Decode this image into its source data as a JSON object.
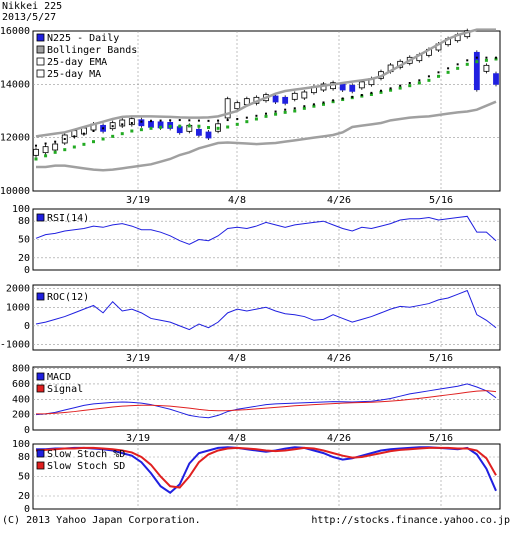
{
  "header": {
    "title": "Nikkei 225",
    "date": "2013/5/27"
  },
  "footer": {
    "copyright": "(C) 2013 Yahoo Japan Corporation.",
    "url": "http://stocks.finance.yahoo.co.jp"
  },
  "x_ticks": [
    "3/19",
    "4/8",
    "4/26",
    "5/16"
  ],
  "colors": {
    "price": "#2020e0",
    "bollinger": "#a0a0a0",
    "ema": "#22aa22",
    "ma": "#000000",
    "signal": "#e02020",
    "grid": "#999999"
  },
  "chart_data": [
    {
      "type": "line",
      "title": "N225 - Daily",
      "legend": [
        "N225 - Daily",
        "Bollinger Bands",
        "25-day EMA",
        "25-day MA"
      ],
      "y_ticks": [
        10000,
        12000,
        14000,
        16000
      ],
      "ylim": [
        10000,
        16000
      ],
      "series": [
        {
          "name": "N225 - Daily",
          "values": [
            11450,
            11550,
            11650,
            11950,
            12150,
            12250,
            12400,
            12350,
            12450,
            12550,
            12600,
            12560,
            12500,
            12480,
            12460,
            12300,
            12350,
            12200,
            12100,
            12380,
            13100,
            13200,
            13350,
            13400,
            13500,
            13450,
            13400,
            13550,
            13600,
            13800,
            13900,
            13950,
            13900,
            13850,
            13980,
            14100,
            14350,
            14600,
            14750,
            14900,
            15000,
            15200,
            15400,
            15600,
            15750,
            15900,
            14500,
            14600,
            14200
          ]
        },
        {
          "name": "Bollinger Upper",
          "values": [
            12050,
            12100,
            12150,
            12200,
            12300,
            12400,
            12500,
            12600,
            12700,
            12780,
            12800,
            12800,
            12800,
            12790,
            12780,
            12760,
            12750,
            12750,
            12760,
            12800,
            12900,
            13000,
            13200,
            13350,
            13500,
            13650,
            13750,
            13800,
            13850,
            13900,
            13950,
            14000,
            14050,
            14100,
            14150,
            14200,
            14300,
            14500,
            14700,
            14900,
            15100,
            15300,
            15500,
            15700,
            15850,
            15950,
            16050,
            16050,
            16050
          ]
        },
        {
          "name": "Bollinger Lower",
          "values": [
            10900,
            10900,
            10950,
            10950,
            10900,
            10850,
            10800,
            10780,
            10800,
            10850,
            10900,
            10950,
            11000,
            11100,
            11200,
            11350,
            11450,
            11600,
            11700,
            11800,
            11820,
            11800,
            11780,
            11760,
            11780,
            11800,
            11850,
            11900,
            11950,
            12000,
            12050,
            12100,
            12200,
            12400,
            12450,
            12500,
            12550,
            12650,
            12700,
            12750,
            12780,
            12800,
            12850,
            12900,
            12950,
            12980,
            13050,
            13200,
            13350
          ]
        },
        {
          "name": "25-day EMA",
          "values": [
            11200,
            11320,
            11450,
            11550,
            11650,
            11750,
            11850,
            11950,
            12050,
            12150,
            12250,
            12300,
            12350,
            12390,
            12420,
            12430,
            12440,
            12430,
            12380,
            12350,
            12400,
            12500,
            12600,
            12700,
            12800,
            12880,
            12950,
            13000,
            13100,
            13180,
            13250,
            13350,
            13430,
            13500,
            13560,
            13620,
            13700,
            13780,
            13860,
            13950,
            14050,
            14150,
            14300,
            14450,
            14600,
            14750,
            14850,
            14900,
            14950
          ]
        },
        {
          "name": "25-day MA",
          "values": [
            11700,
            11780,
            11850,
            11950,
            12050,
            12150,
            12250,
            12350,
            12430,
            12500,
            12550,
            12600,
            12620,
            12640,
            12650,
            12660,
            12650,
            12640,
            12630,
            12640,
            12660,
            12700,
            12750,
            12820,
            12900,
            12980,
            13050,
            13100,
            13180,
            13250,
            13320,
            13400,
            13470,
            13530,
            13600,
            13680,
            13760,
            13850,
            13950,
            14050,
            14150,
            14300,
            14450,
            14600,
            14750,
            14900,
            15000,
            15000,
            15000
          ]
        }
      ]
    },
    {
      "type": "line",
      "title": "RSI(14)",
      "legend": [
        "RSI(14)"
      ],
      "y_ticks": [
        0,
        20,
        50,
        80,
        100
      ],
      "ylim": [
        0,
        100
      ],
      "series": [
        {
          "name": "RSI(14)",
          "values": [
            52,
            58,
            60,
            64,
            66,
            68,
            72,
            70,
            74,
            76,
            72,
            66,
            66,
            62,
            56,
            48,
            42,
            50,
            48,
            56,
            68,
            70,
            68,
            72,
            78,
            74,
            70,
            74,
            76,
            78,
            80,
            74,
            68,
            64,
            70,
            68,
            72,
            76,
            82,
            84,
            84,
            86,
            82,
            84,
            86,
            88,
            62,
            62,
            48
          ]
        }
      ]
    },
    {
      "type": "line",
      "title": "ROC(12)",
      "legend": [
        "ROC(12)"
      ],
      "y_ticks": [
        -1000,
        0,
        1000,
        2000
      ],
      "ylim": [
        -1300,
        2200
      ],
      "series": [
        {
          "name": "ROC(12)",
          "values": [
            100,
            200,
            350,
            500,
            700,
            900,
            1100,
            700,
            1300,
            800,
            900,
            700,
            400,
            300,
            200,
            0,
            -200,
            100,
            -100,
            200,
            700,
            900,
            800,
            900,
            1000,
            800,
            650,
            600,
            500,
            300,
            350,
            600,
            400,
            200,
            350,
            500,
            700,
            900,
            1050,
            1000,
            1100,
            1200,
            1400,
            1500,
            1700,
            1900,
            600,
            300,
            -100
          ]
        }
      ]
    },
    {
      "type": "line",
      "title": "MACD",
      "legend": [
        "MACD",
        "Signal"
      ],
      "y_ticks": [
        0,
        200,
        400,
        600,
        800
      ],
      "ylim": [
        0,
        820
      ],
      "series": [
        {
          "name": "MACD",
          "values": [
            200,
            210,
            230,
            260,
            290,
            320,
            340,
            350,
            360,
            365,
            360,
            350,
            330,
            300,
            270,
            230,
            190,
            170,
            160,
            190,
            240,
            270,
            290,
            310,
            330,
            340,
            345,
            350,
            355,
            360,
            365,
            370,
            368,
            365,
            370,
            375,
            390,
            410,
            440,
            470,
            490,
            510,
            530,
            550,
            570,
            600,
            560,
            510,
            420
          ]
        },
        {
          "name": "Signal",
          "values": [
            210,
            212,
            218,
            228,
            240,
            255,
            270,
            285,
            300,
            310,
            318,
            322,
            322,
            318,
            310,
            298,
            284,
            268,
            255,
            250,
            252,
            258,
            265,
            275,
            285,
            295,
            305,
            315,
            322,
            330,
            337,
            344,
            350,
            354,
            358,
            362,
            368,
            376,
            386,
            398,
            412,
            426,
            442,
            458,
            474,
            492,
            506,
            512,
            500
          ]
        }
      ]
    },
    {
      "type": "line",
      "title": "Slow Stoch %D",
      "legend": [
        "Slow Stoch %D",
        "Slow Stoch SD"
      ],
      "y_ticks": [
        0,
        20,
        50,
        80,
        100
      ],
      "ylim": [
        0,
        100
      ],
      "series": [
        {
          "name": "Slow Stoch %D",
          "values": [
            92,
            92,
            93,
            93,
            94,
            94,
            93,
            92,
            90,
            86,
            82,
            72,
            55,
            35,
            25,
            38,
            70,
            86,
            90,
            94,
            95,
            94,
            92,
            90,
            88,
            90,
            93,
            95,
            94,
            90,
            86,
            80,
            76,
            78,
            82,
            86,
            90,
            92,
            93,
            94,
            95,
            95,
            94,
            93,
            92,
            94,
            84,
            62,
            28
          ]
        },
        {
          "name": "Slow Stoch SD",
          "values": [
            90,
            91,
            92,
            93,
            93,
            94,
            94,
            93,
            92,
            90,
            87,
            80,
            68,
            50,
            35,
            33,
            50,
            72,
            84,
            90,
            93,
            94,
            93,
            92,
            90,
            89,
            90,
            92,
            94,
            93,
            90,
            86,
            82,
            79,
            80,
            83,
            86,
            89,
            91,
            92,
            93,
            94,
            94,
            94,
            93,
            93,
            90,
            78,
            52
          ]
        }
      ]
    }
  ]
}
